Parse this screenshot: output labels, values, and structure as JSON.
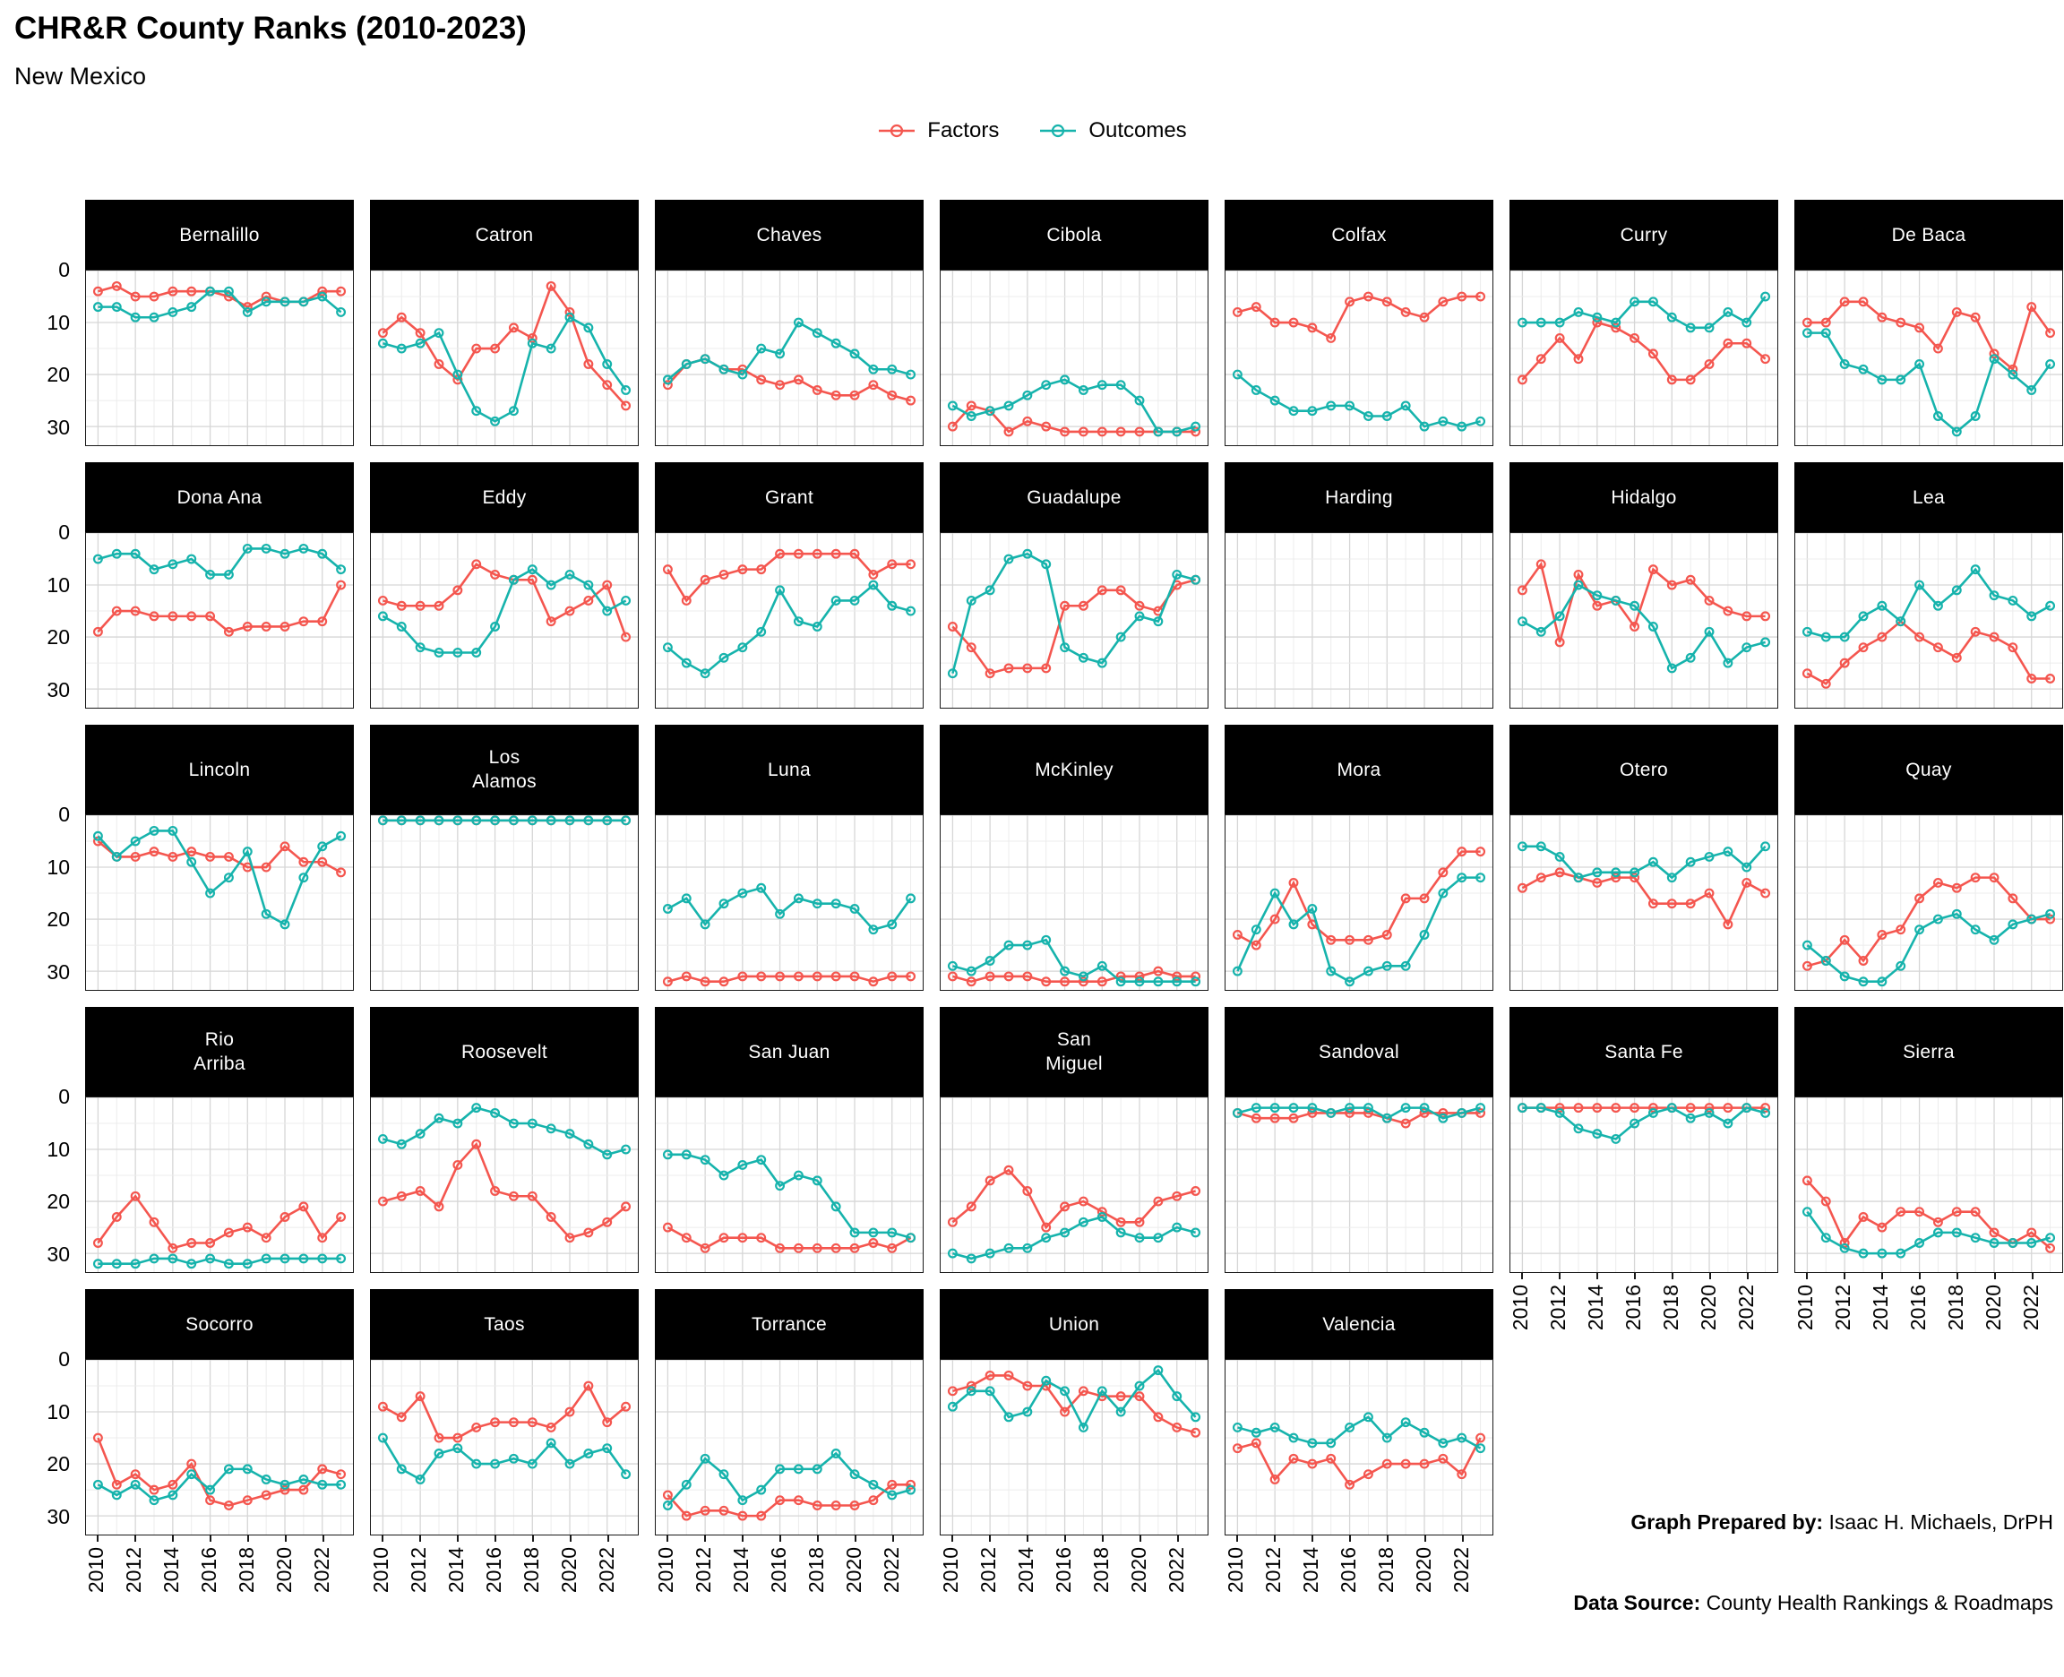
{
  "title": "CHR&R County Ranks (2010-2023)",
  "subtitle": "New Mexico",
  "legend": {
    "factors_label": "Factors",
    "outcomes_label": "Outcomes"
  },
  "colors": {
    "factors": "#F4564F",
    "outcomes": "#16B3AC",
    "strip_bg": "#000000",
    "strip_text": "#FFFFFF",
    "grid_major": "#D6D6D6",
    "grid_minor": "#ECECEC",
    "panel_border": "#1A1A1A"
  },
  "axes": {
    "y_tick_labels": [
      "0",
      "10",
      "20",
      "30"
    ],
    "x_tick_labels": [
      "2010",
      "2012",
      "2014",
      "2016",
      "2018",
      "2020",
      "2022"
    ]
  },
  "footer": {
    "prepared_by_label": "Graph Prepared by:",
    "prepared_by_value": " Isaac H. Michaels, DrPH",
    "source_label": "Data Source:",
    "source_value": " County Health Rankings & Roadmaps"
  },
  "chart_data": {
    "type": "line",
    "title": "CHR&R County Ranks (2010-2023)",
    "subtitle": "New Mexico",
    "xlabel": "",
    "ylabel": "",
    "legend_position": "top",
    "grid": true,
    "y_reversed": true,
    "ylim": [
      0,
      33.6
    ],
    "y_ticks": [
      0,
      10,
      20,
      30
    ],
    "x": [
      2010,
      2011,
      2012,
      2013,
      2014,
      2015,
      2016,
      2017,
      2018,
      2019,
      2020,
      2021,
      2022,
      2023
    ],
    "series_names": [
      "Factors",
      "Outcomes"
    ],
    "facets": [
      {
        "name": "Bernalillo",
        "factors": [
          4,
          3,
          5,
          5,
          4,
          4,
          4,
          5,
          7,
          5,
          6,
          6,
          4,
          4
        ],
        "outcomes": [
          7,
          7,
          9,
          9,
          8,
          7,
          4,
          4,
          8,
          6,
          6,
          6,
          5,
          8
        ]
      },
      {
        "name": "Catron",
        "factors": [
          12,
          9,
          12,
          18,
          21,
          15,
          15,
          11,
          13,
          3,
          8,
          18,
          22,
          26
        ],
        "outcomes": [
          14,
          15,
          14,
          12,
          20,
          27,
          29,
          27,
          14,
          15,
          9,
          11,
          18,
          23
        ]
      },
      {
        "name": "Chaves",
        "factors": [
          22,
          18,
          17,
          19,
          19,
          21,
          22,
          21,
          23,
          24,
          24,
          22,
          24,
          25
        ],
        "outcomes": [
          21,
          18,
          17,
          19,
          20,
          15,
          16,
          10,
          12,
          14,
          16,
          19,
          19,
          20
        ]
      },
      {
        "name": "Cibola",
        "factors": [
          30,
          26,
          27,
          31,
          29,
          30,
          31,
          31,
          31,
          31,
          31,
          31,
          31,
          31
        ],
        "outcomes": [
          26,
          28,
          27,
          26,
          24,
          22,
          21,
          23,
          22,
          22,
          25,
          31,
          31,
          30
        ]
      },
      {
        "name": "Colfax",
        "factors": [
          8,
          7,
          10,
          10,
          11,
          13,
          6,
          5,
          6,
          8,
          9,
          6,
          5,
          5
        ],
        "outcomes": [
          20,
          23,
          25,
          27,
          27,
          26,
          26,
          28,
          28,
          26,
          30,
          29,
          30,
          29
        ]
      },
      {
        "name": "Curry",
        "factors": [
          21,
          17,
          13,
          17,
          10,
          11,
          13,
          16,
          21,
          21,
          18,
          14,
          14,
          17
        ],
        "outcomes": [
          10,
          10,
          10,
          8,
          9,
          10,
          6,
          6,
          9,
          11,
          11,
          8,
          10,
          5
        ]
      },
      {
        "name": "De Baca",
        "factors": [
          10,
          10,
          6,
          6,
          9,
          10,
          11,
          15,
          8,
          9,
          16,
          19,
          7,
          12
        ],
        "outcomes": [
          12,
          12,
          18,
          19,
          21,
          21,
          18,
          28,
          31,
          28,
          17,
          20,
          23,
          18
        ]
      },
      {
        "name": "Dona Ana",
        "factors": [
          19,
          15,
          15,
          16,
          16,
          16,
          16,
          19,
          18,
          18,
          18,
          17,
          17,
          10
        ],
        "outcomes": [
          5,
          4,
          4,
          7,
          6,
          5,
          8,
          8,
          3,
          3,
          4,
          3,
          4,
          7
        ]
      },
      {
        "name": "Eddy",
        "factors": [
          13,
          14,
          14,
          14,
          11,
          6,
          8,
          9,
          9,
          17,
          15,
          13,
          10,
          20
        ],
        "outcomes": [
          16,
          18,
          22,
          23,
          23,
          23,
          18,
          9,
          7,
          10,
          8,
          10,
          15,
          13
        ]
      },
      {
        "name": "Grant",
        "factors": [
          7,
          13,
          9,
          8,
          7,
          7,
          4,
          4,
          4,
          4,
          4,
          8,
          6,
          6
        ],
        "outcomes": [
          22,
          25,
          27,
          24,
          22,
          19,
          11,
          17,
          18,
          13,
          13,
          10,
          14,
          15
        ]
      },
      {
        "name": "Guadalupe",
        "factors": [
          18,
          22,
          27,
          26,
          26,
          26,
          14,
          14,
          11,
          11,
          14,
          15,
          10,
          9
        ],
        "outcomes": [
          27,
          13,
          11,
          5,
          4,
          6,
          22,
          24,
          25,
          20,
          16,
          17,
          8,
          9
        ]
      },
      {
        "name": "Harding",
        "factors": [],
        "outcomes": []
      },
      {
        "name": "Hidalgo",
        "factors": [
          11,
          6,
          21,
          8,
          14,
          13,
          18,
          7,
          10,
          9,
          13,
          15,
          16,
          16
        ],
        "outcomes": [
          17,
          19,
          16,
          10,
          12,
          13,
          14,
          18,
          26,
          24,
          19,
          25,
          22,
          21
        ]
      },
      {
        "name": "Lea",
        "factors": [
          27,
          29,
          25,
          22,
          20,
          17,
          20,
          22,
          24,
          19,
          20,
          22,
          28,
          28
        ],
        "outcomes": [
          19,
          20,
          20,
          16,
          14,
          17,
          10,
          14,
          11,
          7,
          12,
          13,
          16,
          14
        ]
      },
      {
        "name": "Lincoln",
        "factors": [
          5,
          8,
          8,
          7,
          8,
          7,
          8,
          8,
          10,
          10,
          6,
          9,
          9,
          11
        ],
        "outcomes": [
          4,
          8,
          5,
          3,
          3,
          9,
          15,
          12,
          7,
          19,
          21,
          12,
          6,
          4
        ]
      },
      {
        "name": "Los\nAlamos",
        "factors": [
          1,
          1,
          1,
          1,
          1,
          1,
          1,
          1,
          1,
          1,
          1,
          1,
          1,
          1
        ],
        "outcomes": [
          1,
          1,
          1,
          1,
          1,
          1,
          1,
          1,
          1,
          1,
          1,
          1,
          1,
          1
        ]
      },
      {
        "name": "Luna",
        "factors": [
          32,
          31,
          32,
          32,
          31,
          31,
          31,
          31,
          31,
          31,
          31,
          32,
          31,
          31
        ],
        "outcomes": [
          18,
          16,
          21,
          17,
          15,
          14,
          19,
          16,
          17,
          17,
          18,
          22,
          21,
          16
        ]
      },
      {
        "name": "McKinley",
        "factors": [
          31,
          32,
          31,
          31,
          31,
          32,
          32,
          32,
          32,
          31,
          31,
          30,
          31,
          31
        ],
        "outcomes": [
          29,
          30,
          28,
          25,
          25,
          24,
          30,
          31,
          29,
          32,
          32,
          32,
          32,
          32
        ]
      },
      {
        "name": "Mora",
        "factors": [
          23,
          25,
          20,
          13,
          21,
          24,
          24,
          24,
          23,
          16,
          16,
          11,
          7,
          7
        ],
        "outcomes": [
          30,
          22,
          15,
          21,
          18,
          30,
          32,
          30,
          29,
          29,
          23,
          15,
          12,
          12
        ]
      },
      {
        "name": "Otero",
        "factors": [
          14,
          12,
          11,
          12,
          13,
          12,
          12,
          17,
          17,
          17,
          15,
          21,
          13,
          15
        ],
        "outcomes": [
          6,
          6,
          8,
          12,
          11,
          11,
          11,
          9,
          12,
          9,
          8,
          7,
          10,
          6
        ]
      },
      {
        "name": "Quay",
        "factors": [
          29,
          28,
          24,
          28,
          23,
          22,
          16,
          13,
          14,
          12,
          12,
          16,
          20,
          20
        ],
        "outcomes": [
          25,
          28,
          31,
          32,
          32,
          29,
          22,
          20,
          19,
          22,
          24,
          21,
          20,
          19
        ]
      },
      {
        "name": "Rio\nArriba",
        "factors": [
          28,
          23,
          19,
          24,
          29,
          28,
          28,
          26,
          25,
          27,
          23,
          21,
          27,
          23
        ],
        "outcomes": [
          32,
          32,
          32,
          31,
          31,
          32,
          31,
          32,
          32,
          31,
          31,
          31,
          31,
          31
        ]
      },
      {
        "name": "Roosevelt",
        "factors": [
          20,
          19,
          18,
          21,
          13,
          9,
          18,
          19,
          19,
          23,
          27,
          26,
          24,
          21
        ],
        "outcomes": [
          8,
          9,
          7,
          4,
          5,
          2,
          3,
          5,
          5,
          6,
          7,
          9,
          11,
          10
        ]
      },
      {
        "name": "San Juan",
        "factors": [
          25,
          27,
          29,
          27,
          27,
          27,
          29,
          29,
          29,
          29,
          29,
          28,
          29,
          27
        ],
        "outcomes": [
          11,
          11,
          12,
          15,
          13,
          12,
          17,
          15,
          16,
          21,
          26,
          26,
          26,
          27
        ]
      },
      {
        "name": "San\nMiguel",
        "factors": [
          24,
          21,
          16,
          14,
          18,
          25,
          21,
          20,
          22,
          24,
          24,
          20,
          19,
          18
        ],
        "outcomes": [
          30,
          31,
          30,
          29,
          29,
          27,
          26,
          24,
          23,
          26,
          27,
          27,
          25,
          26
        ]
      },
      {
        "name": "Sandoval",
        "factors": [
          3,
          4,
          4,
          4,
          3,
          3,
          3,
          3,
          4,
          5,
          3,
          3,
          3,
          3
        ],
        "outcomes": [
          3,
          2,
          2,
          2,
          2,
          3,
          2,
          2,
          4,
          2,
          2,
          4,
          3,
          2
        ]
      },
      {
        "name": "Santa Fe",
        "factors": [
          2,
          2,
          2,
          2,
          2,
          2,
          2,
          2,
          2,
          2,
          2,
          2,
          2,
          2
        ],
        "outcomes": [
          2,
          2,
          3,
          6,
          7,
          8,
          5,
          3,
          2,
          4,
          3,
          5,
          2,
          3
        ]
      },
      {
        "name": "Sierra",
        "factors": [
          16,
          20,
          28,
          23,
          25,
          22,
          22,
          24,
          22,
          22,
          26,
          28,
          26,
          29
        ],
        "outcomes": [
          22,
          27,
          29,
          30,
          30,
          30,
          28,
          26,
          26,
          27,
          28,
          28,
          28,
          27
        ]
      },
      {
        "name": "Socorro",
        "factors": [
          15,
          24,
          22,
          25,
          24,
          20,
          27,
          28,
          27,
          26,
          25,
          25,
          21,
          22
        ],
        "outcomes": [
          24,
          26,
          24,
          27,
          26,
          22,
          25,
          21,
          21,
          23,
          24,
          23,
          24,
          24
        ]
      },
      {
        "name": "Taos",
        "factors": [
          9,
          11,
          7,
          15,
          15,
          13,
          12,
          12,
          12,
          13,
          10,
          5,
          12,
          9
        ],
        "outcomes": [
          15,
          21,
          23,
          18,
          17,
          20,
          20,
          19,
          20,
          16,
          20,
          18,
          17,
          22
        ]
      },
      {
        "name": "Torrance",
        "factors": [
          26,
          30,
          29,
          29,
          30,
          30,
          27,
          27,
          28,
          28,
          28,
          27,
          24,
          24
        ],
        "outcomes": [
          28,
          24,
          19,
          22,
          27,
          25,
          21,
          21,
          21,
          18,
          22,
          24,
          26,
          25
        ]
      },
      {
        "name": "Union",
        "factors": [
          6,
          5,
          3,
          3,
          5,
          5,
          10,
          6,
          7,
          7,
          7,
          11,
          13,
          14
        ],
        "outcomes": [
          9,
          6,
          6,
          11,
          10,
          4,
          6,
          13,
          6,
          10,
          5,
          2,
          7,
          11
        ]
      },
      {
        "name": "Valencia",
        "factors": [
          17,
          16,
          23,
          19,
          20,
          19,
          24,
          22,
          20,
          20,
          20,
          19,
          22,
          15
        ],
        "outcomes": [
          13,
          14,
          13,
          15,
          16,
          16,
          13,
          11,
          15,
          12,
          14,
          16,
          15,
          17
        ]
      }
    ]
  }
}
